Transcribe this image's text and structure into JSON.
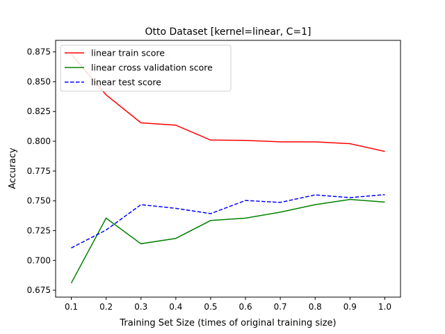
{
  "chart_data": {
    "type": "line",
    "title": "Otto Dataset [kernel=linear, C=1]",
    "xlabel": "Training Set Size (times of original training size)",
    "ylabel": "Accuracy",
    "x": [
      0.1,
      0.2,
      0.3,
      0.4,
      0.5,
      0.6,
      0.7,
      0.8,
      0.9,
      1.0
    ],
    "xticks": [
      "0.1",
      "0.2",
      "0.3",
      "0.4",
      "0.5",
      "0.6",
      "0.7",
      "0.8",
      "0.9",
      "1.0"
    ],
    "yticks": [
      "0.675",
      "0.700",
      "0.725",
      "0.750",
      "0.775",
      "0.800",
      "0.825",
      "0.850",
      "0.875"
    ],
    "xlim": [
      0.055,
      1.045
    ],
    "ylim": [
      0.6692,
      0.8847
    ],
    "grid": false,
    "legend_position": "upper-left",
    "series": [
      {
        "name": "linear train score",
        "color": "#ff0000",
        "dash": "solid",
        "values": [
          0.873,
          0.839,
          0.8155,
          0.8135,
          0.801,
          0.8008,
          0.7995,
          0.7995,
          0.798,
          0.7915
        ]
      },
      {
        "name": "linear cross validation score",
        "color": "#008000",
        "dash": "solid",
        "values": [
          0.681,
          0.7355,
          0.714,
          0.7185,
          0.7335,
          0.7355,
          0.7405,
          0.7468,
          0.7512,
          0.749
        ]
      },
      {
        "name": "linear test score",
        "color": "#0000ff",
        "dash": "dashed",
        "values": [
          0.7105,
          0.7255,
          0.7468,
          0.7437,
          0.7393,
          0.7503,
          0.7487,
          0.755,
          0.7527,
          0.7552
        ]
      }
    ]
  }
}
